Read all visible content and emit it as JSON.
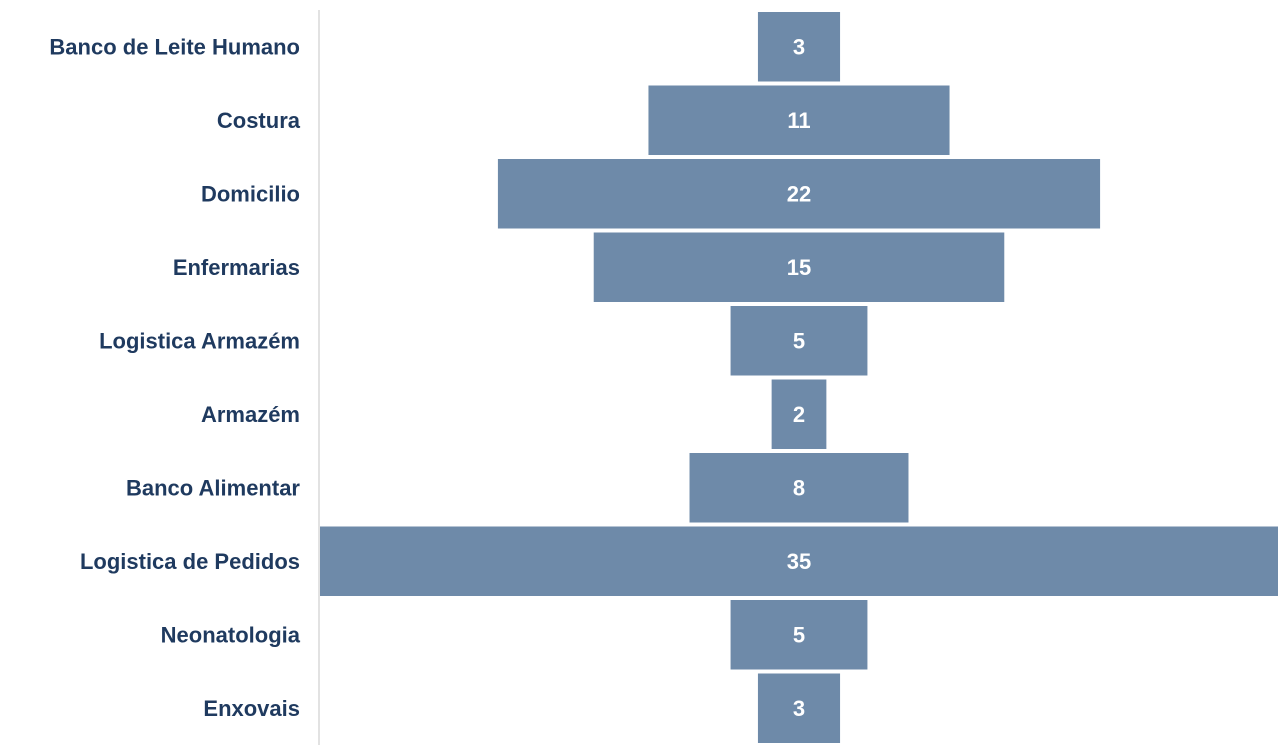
{
  "chart_data": {
    "type": "bar",
    "orientation": "horizontal",
    "layout": "funnel-centered",
    "categories": [
      "Banco de Leite Humano",
      "Costura",
      "Domicilio",
      "Enfermarias",
      "Logistica Armazém",
      "Armazém",
      "Banco Alimentar",
      "Logistica de Pedidos",
      "Neonatologia",
      "Enxovais"
    ],
    "values": [
      3,
      11,
      22,
      15,
      5,
      2,
      8,
      35,
      5,
      3
    ],
    "title": "",
    "xlabel": "",
    "ylabel": "",
    "xlim": [
      0,
      35
    ],
    "grid": false,
    "legend": "none",
    "data_labels": true,
    "colors": {
      "bar": "#6e8aa9",
      "category_text": "#1f3a5f",
      "value_text": "#ffffff",
      "axis_line": "#d9d9d9"
    }
  }
}
